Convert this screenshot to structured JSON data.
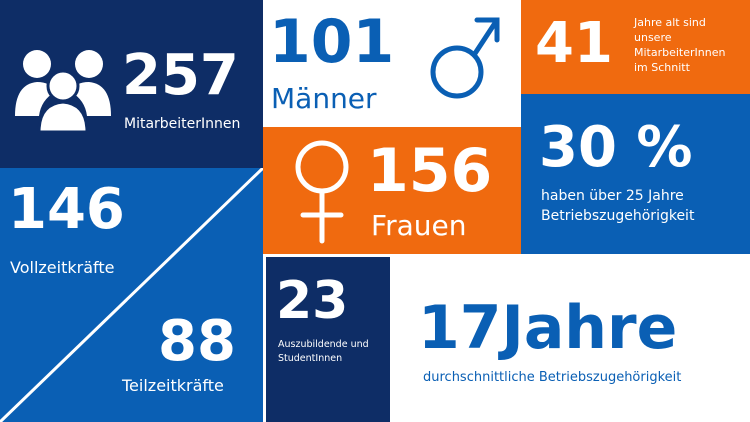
{
  "colors": {
    "navy": "#0e2d66",
    "blue": "#0a5fb4",
    "orange": "#f06a0f",
    "white": "#ffffff"
  },
  "employees": {
    "value": "257",
    "label": "MitarbeiterInnen",
    "icon": "people-group-icon"
  },
  "men": {
    "value": "101",
    "label": "Männer",
    "icon": "male-symbol-icon"
  },
  "age": {
    "value": "41",
    "label_line1": "Jahre alt sind",
    "label_line2": "unsere",
    "label_line3": "MitarbeiterInnen",
    "label_line4": "im Schnitt"
  },
  "women": {
    "value": "156",
    "label": "Frauen",
    "icon": "female-symbol-icon"
  },
  "seniority": {
    "value": "30 %",
    "label_line1": "haben über 25 Jahre",
    "label_line2": "Betriebszugehörigkeit"
  },
  "fulltime": {
    "value": "146",
    "label": "Vollzeitkräfte"
  },
  "parttime": {
    "value": "88",
    "label": "Teilzeitkräfte"
  },
  "trainees": {
    "value": "23",
    "label_line1": "Auszubildende und",
    "label_line2": "StudentInnen"
  },
  "tenure": {
    "value": "17Jahre",
    "label": "durchschnittliche Betriebszugehörigkeit"
  }
}
